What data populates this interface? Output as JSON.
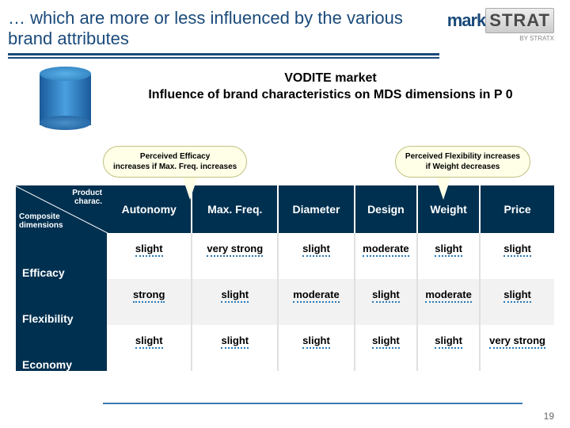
{
  "title": "… which are more or less influenced by the various brand attributes",
  "logo": {
    "mark": "mark",
    "strat": "STRAT",
    "byline": "BY STRATX"
  },
  "chart_title_line1": "VODITE market",
  "chart_title_line2": "Influence of brand characteristics on MDS dimensions in P 0",
  "callout_left": {
    "line1": "Perceived Efficacy",
    "line2": "increases if Max. Freq. increases"
  },
  "callout_right": {
    "line1": "Perceived Flexibility increases",
    "line2": "if Weight decreases"
  },
  "corner": {
    "top1": "Product",
    "top2": "charac.",
    "bot1": "Composite",
    "bot2": "dimensions"
  },
  "columns": [
    "Autonomy",
    "Max. Freq.",
    "Diameter",
    "Design",
    "Weight",
    "Price"
  ],
  "rows": [
    {
      "label": "Efficacy",
      "cells": [
        "slight",
        "very strong",
        "slight",
        "moderate",
        "slight",
        "slight"
      ]
    },
    {
      "label": "Flexibility",
      "cells": [
        "strong",
        "slight",
        "moderate",
        "slight",
        "moderate",
        "slight"
      ]
    },
    {
      "label": "Economy",
      "cells": [
        "slight",
        "slight",
        "slight",
        "slight",
        "slight",
        "very strong"
      ]
    }
  ],
  "page_number": "19",
  "colors": {
    "header_blue": "#1a4a7a",
    "table_head_bg": "#003050",
    "callout_bg": "#ffffe8",
    "callout_border": "#c0c080",
    "cylinder_light": "#4aa0e0",
    "cylinder_dark": "#1a5a9a",
    "dotted_underline": "#2a7ab8"
  }
}
